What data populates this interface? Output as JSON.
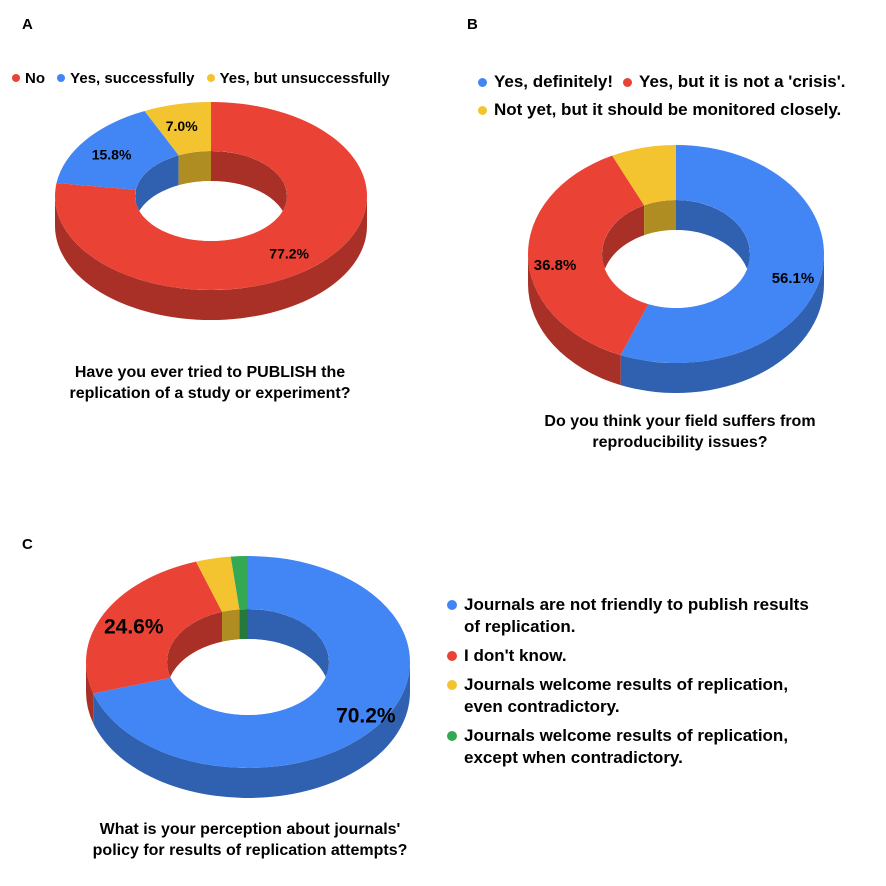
{
  "colors": {
    "blue": "#4285F4",
    "red": "#EA4335",
    "yellow": "#F4C430",
    "green": "#34A853"
  },
  "panels": {
    "a": "A",
    "b": "B",
    "c": "C"
  },
  "chart_data": [
    {
      "type": "pie",
      "panel": "A",
      "title": "Have you ever tried to PUBLISH the replication of a study or experiment?",
      "title_lines": [
        "Have you ever tried to PUBLISH the",
        "replication of a study or experiment?"
      ],
      "legend_placement": "top",
      "labels": [
        "No",
        "Yes, successfully",
        "Yes, but unsuccessfully"
      ],
      "values": [
        77.2,
        15.8,
        7.0
      ],
      "value_labels": [
        "77.2%",
        "15.8%",
        "7.0%"
      ],
      "colors": [
        "#EA4335",
        "#4285F4",
        "#F4C430"
      ]
    },
    {
      "type": "pie",
      "panel": "B",
      "title": "Do you think your field suffers from reproducibility issues?",
      "title_lines": [
        "Do you think your field suffers from",
        "reproducibility issues?"
      ],
      "legend_placement": "top",
      "labels": [
        "Yes, definitely!",
        "Yes, but it is not a 'crisis'.",
        "Not yet, but it should be monitored closely."
      ],
      "values": [
        56.1,
        36.8,
        7.1
      ],
      "value_labels": [
        "56.1%",
        "36.8%",
        ""
      ],
      "colors": [
        "#4285F4",
        "#EA4335",
        "#F4C430"
      ]
    },
    {
      "type": "pie",
      "panel": "C",
      "title": "What is your perception about journals' policy for results of replication attempts?",
      "title_lines": [
        "What is your perception about journals'",
        "policy for results of replication attempts?"
      ],
      "legend_placement": "right",
      "labels": [
        "Journals are not friendly to publish results of replication.",
        "I don't know.",
        "Journals welcome results of replication, even contradictory.",
        "Journals welcome results of replication, except when contradictory."
      ],
      "label_lines": [
        [
          "Journals are not friendly to publish results",
          "of replication."
        ],
        [
          "I don't know."
        ],
        [
          "Journals welcome results of replication,",
          "even contradictory."
        ],
        [
          "Journals welcome results of replication,",
          "except when contradictory."
        ]
      ],
      "values": [
        70.2,
        24.6,
        3.5,
        1.7
      ],
      "value_labels": [
        "70.2%",
        "24.6%",
        "",
        ""
      ],
      "colors": [
        "#4285F4",
        "#EA4335",
        "#F4C430",
        "#34A853"
      ]
    }
  ]
}
